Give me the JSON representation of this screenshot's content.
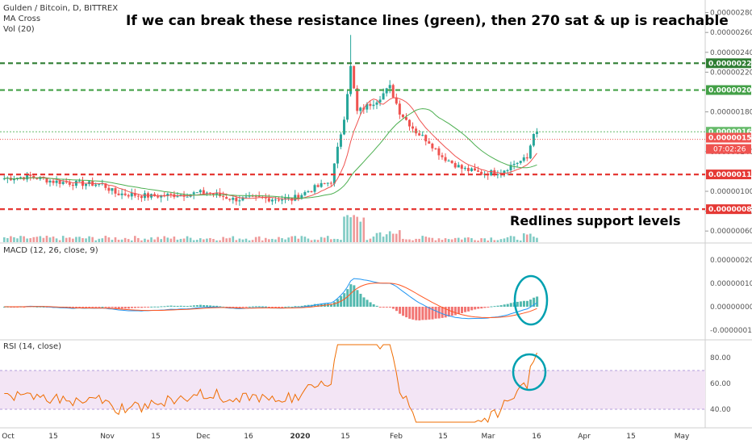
{
  "chart_data": {
    "type": "candlestick",
    "symbol_line": "Gulden / Bitcoin, D, BITTREX",
    "indicators_main": [
      "MA Cross",
      "Vol (20)"
    ],
    "headline": "If we can break these resistance lines (green), then 270 sat & up is reachable",
    "annotation_support": "Redlines support levels",
    "price_axis": {
      "ticks": [
        "0.00000280",
        "0.00000260",
        "0.00000240",
        "0.00000220",
        "0.00000180",
        "0.00000140",
        "0.00000100",
        "0.00000080",
        "0.00000060"
      ],
      "ylim": [
        5.2e-07,
        2.9e-06
      ]
    },
    "time_axis": {
      "labels": [
        "Oct",
        "15",
        "Nov",
        "15",
        "Dec",
        "16",
        "2020",
        "15",
        "Feb",
        "15",
        "Mar",
        "16",
        "Apr",
        "15",
        "May"
      ]
    },
    "levels": [
      {
        "value": 2.29e-06,
        "label": "0.00000229",
        "kind": "resistance",
        "color": "#2e7d32"
      },
      {
        "value": 2.02e-06,
        "label": "0.00000202",
        "kind": "resistance",
        "color": "#43a047"
      },
      {
        "value": 1.6e-06,
        "label": "0.00000160",
        "kind": "last",
        "color": "#66bb6a"
      },
      {
        "value": 1.54e-06,
        "label": "0.00000154",
        "kind": "ma",
        "color": "#ef5350"
      },
      {
        "value": 1.17e-06,
        "label": "0.00000117",
        "kind": "support",
        "color": "#e53935"
      },
      {
        "value": 8.2e-07,
        "label": "0.00000082",
        "kind": "support",
        "color": "#e53935"
      }
    ],
    "countdown": "07:02:26",
    "macd": {
      "title": "MACD (12, 26, close, 9)",
      "ticks": [
        "0.00000020",
        "0.00000010",
        "0.00000000",
        "-0.00000010"
      ]
    },
    "rsi": {
      "title": "RSI (14, close)",
      "ticks": [
        "80.00",
        "60.00",
        "40.00"
      ],
      "band": [
        40,
        70
      ]
    },
    "colors": {
      "up": "#26a69a",
      "down": "#ef5350",
      "ma_fast": "#ef5350",
      "ma_slow": "#4caf50",
      "rsi_line": "#ef6c00",
      "rsi_band": "#f3e5f5",
      "macd_line": "#2196f3",
      "signal_line": "#ff5722",
      "marker_circle": "#00a0b0"
    }
  }
}
